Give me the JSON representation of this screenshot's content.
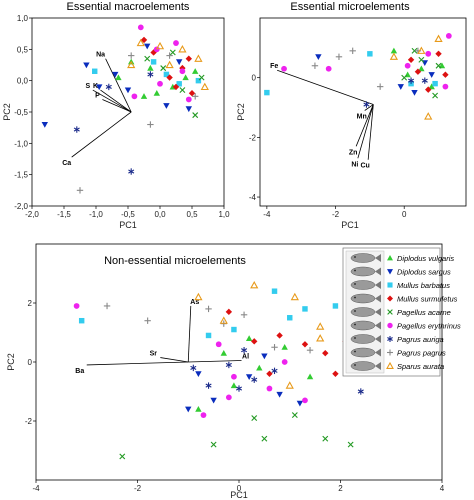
{
  "legend": {
    "title": "",
    "entries": [
      {
        "name": "Diplodus vulgaris",
        "color": "#33cc33",
        "marker": "triangle-up"
      },
      {
        "name": "Diplodus sargus",
        "color": "#0a2dbd",
        "marker": "triangle-down"
      },
      {
        "name": "Mullus barbatus",
        "color": "#33ccee",
        "marker": "square"
      },
      {
        "name": "Mullus surmuletus",
        "color": "#dd1111",
        "marker": "diamond"
      },
      {
        "name": "Pagellus acarne",
        "color": "#229922",
        "marker": "x"
      },
      {
        "name": "Pagellus erythrinus",
        "color": "#ee22ee",
        "marker": "circle"
      },
      {
        "name": "Pagrus auriga",
        "color": "#1a2a8a",
        "marker": "asterisk"
      },
      {
        "name": "Pagrus pagrus",
        "color": "#888888",
        "marker": "plus"
      },
      {
        "name": "Sparus aurata",
        "color": "#e89a1a",
        "marker": "triangle-open"
      }
    ]
  },
  "chart_data": [
    {
      "type": "scatter",
      "title": "Essential macroelements",
      "xlabel": "PC1",
      "ylabel": "PC2",
      "xlim": [
        -2.0,
        1.0
      ],
      "ylim": [
        -2.0,
        1.0
      ],
      "xticks": [
        "-2,0",
        "-1,5",
        "-1,0",
        "-0,5",
        "0,0",
        "0,5",
        "1,0"
      ],
      "xtick_values": [
        -2.0,
        -1.5,
        -1.0,
        -0.5,
        0.0,
        0.5,
        1.0
      ],
      "yticks": [
        "-2,0",
        "-1,5",
        "-1,0",
        "-0,5",
        "0,0",
        "0,5",
        "1,0"
      ],
      "ytick_values": [
        -2.0,
        -1.5,
        -1.0,
        -0.5,
        0.0,
        0.5,
        1.0
      ],
      "origin": [
        -0.45,
        -0.5
      ],
      "loadings": [
        {
          "label": "Na",
          "x": -0.85,
          "y": 0.35
        },
        {
          "label": "S",
          "x": -1.05,
          "y": -0.15
        },
        {
          "label": "K",
          "x": -0.93,
          "y": -0.15
        },
        {
          "label": "P",
          "x": -0.9,
          "y": -0.3
        },
        {
          "label": "Ca",
          "x": -1.38,
          "y": -1.22
        }
      ],
      "points": [
        {
          "s": 0,
          "x": -0.65,
          "y": 0.05
        },
        {
          "s": 0,
          "x": -0.45,
          "y": 0.3
        },
        {
          "s": 0,
          "x": -0.15,
          "y": 0.2
        },
        {
          "s": 0,
          "x": 0.2,
          "y": -0.1
        },
        {
          "s": 0,
          "x": -0.05,
          "y": -0.2
        },
        {
          "s": 0,
          "x": 0.4,
          "y": 0.05
        },
        {
          "s": 0,
          "x": -0.25,
          "y": -0.25
        },
        {
          "s": 0,
          "x": 0.55,
          "y": 0.15
        },
        {
          "s": 1,
          "x": -1.8,
          "y": -0.7
        },
        {
          "s": 1,
          "x": -0.95,
          "y": -0.1
        },
        {
          "s": 1,
          "x": -0.7,
          "y": 0.1
        },
        {
          "s": 1,
          "x": -0.2,
          "y": 0.55
        },
        {
          "s": 1,
          "x": 0.1,
          "y": -0.4
        },
        {
          "s": 1,
          "x": 0.45,
          "y": -0.45
        },
        {
          "s": 1,
          "x": 0.3,
          "y": 0.3
        },
        {
          "s": 1,
          "x": -0.5,
          "y": -0.15
        },
        {
          "s": 1,
          "x": -1.15,
          "y": 0.25
        },
        {
          "s": 2,
          "x": -1.02,
          "y": 0.15
        },
        {
          "s": 2,
          "x": 0.6,
          "y": 0.0
        },
        {
          "s": 2,
          "x": -0.1,
          "y": 0.3
        },
        {
          "s": 2,
          "x": 0.1,
          "y": 0.1
        },
        {
          "s": 2,
          "x": 0.3,
          "y": -0.05
        },
        {
          "s": 3,
          "x": -0.1,
          "y": 0.45
        },
        {
          "s": 3,
          "x": 0.15,
          "y": 0.05
        },
        {
          "s": 3,
          "x": 0.35,
          "y": 0.2
        },
        {
          "s": 3,
          "x": 0.25,
          "y": -0.1
        },
        {
          "s": 3,
          "x": 0.5,
          "y": -0.2
        },
        {
          "s": 3,
          "x": -0.25,
          "y": 0.65
        },
        {
          "s": 3,
          "x": 0.45,
          "y": 0.35
        },
        {
          "s": 4,
          "x": 0.05,
          "y": 0.2
        },
        {
          "s": 4,
          "x": 0.35,
          "y": -0.15
        },
        {
          "s": 4,
          "x": 0.65,
          "y": 0.05
        },
        {
          "s": 4,
          "x": 0.55,
          "y": -0.55
        },
        {
          "s": 4,
          "x": -0.2,
          "y": 0.35
        },
        {
          "s": 4,
          "x": 0.2,
          "y": 0.45
        },
        {
          "s": 5,
          "x": -0.3,
          "y": 0.85
        },
        {
          "s": 5,
          "x": -0.05,
          "y": 0.5
        },
        {
          "s": 5,
          "x": 0.25,
          "y": 0.6
        },
        {
          "s": 5,
          "x": -0.4,
          "y": -0.25
        },
        {
          "s": 5,
          "x": 0.35,
          "y": 0.15
        },
        {
          "s": 5,
          "x": 0.0,
          "y": -0.05
        },
        {
          "s": 5,
          "x": 0.45,
          "y": -0.3
        },
        {
          "s": 6,
          "x": -1.3,
          "y": -0.78
        },
        {
          "s": 6,
          "x": -0.45,
          "y": -1.45
        },
        {
          "s": 6,
          "x": -0.8,
          "y": -0.1
        },
        {
          "s": 6,
          "x": -0.15,
          "y": 0.1
        },
        {
          "s": 7,
          "x": -0.45,
          "y": 0.4
        },
        {
          "s": 7,
          "x": -0.15,
          "y": -0.7
        },
        {
          "s": 7,
          "x": -1.25,
          "y": -1.75
        },
        {
          "s": 7,
          "x": 0.55,
          "y": -0.25
        },
        {
          "s": 7,
          "x": 0.15,
          "y": 0.4
        },
        {
          "s": 8,
          "x": -0.3,
          "y": 0.6
        },
        {
          "s": 8,
          "x": 0.0,
          "y": 0.55
        },
        {
          "s": 8,
          "x": 0.35,
          "y": 0.5
        },
        {
          "s": 8,
          "x": 0.6,
          "y": 0.35
        },
        {
          "s": 8,
          "x": 0.15,
          "y": 0.25
        },
        {
          "s": 8,
          "x": -0.45,
          "y": 0.25
        },
        {
          "s": 8,
          "x": 0.7,
          "y": -0.1
        }
      ]
    },
    {
      "type": "scatter",
      "title": "Essential microelements",
      "xlabel": "PC1",
      "ylabel": "PC2",
      "xlim": [
        -4.2,
        1.8
      ],
      "ylim": [
        -4.3,
        2.0
      ],
      "xticks": [
        "-4",
        "-2",
        "0"
      ],
      "xtick_values": [
        -4,
        -2,
        0
      ],
      "yticks": [
        "-4",
        "-2",
        "0"
      ],
      "ytick_values": [
        -4,
        -2,
        0
      ],
      "origin": [
        -0.9,
        -0.9
      ],
      "loadings": [
        {
          "label": "Fe",
          "x": -3.7,
          "y": 0.25
        },
        {
          "label": "Mn",
          "x": -1.15,
          "y": -1.1
        },
        {
          "label": "Zn",
          "x": -1.4,
          "y": -2.3
        },
        {
          "label": "Ni",
          "x": -1.35,
          "y": -2.7
        },
        {
          "label": "Cu",
          "x": -1.05,
          "y": -2.75
        }
      ],
      "points": [
        {
          "s": 0,
          "x": -0.3,
          "y": 0.9
        },
        {
          "s": 0,
          "x": 0.5,
          "y": 0.3
        },
        {
          "s": 0,
          "x": 0.1,
          "y": 0.1
        },
        {
          "s": 0,
          "x": 0.8,
          "y": -0.3
        },
        {
          "s": 0,
          "x": 1.1,
          "y": 0.4
        },
        {
          "s": 1,
          "x": -2.5,
          "y": 0.7
        },
        {
          "s": 1,
          "x": 0.3,
          "y": -0.5
        },
        {
          "s": 1,
          "x": -0.1,
          "y": -0.3
        },
        {
          "s": 1,
          "x": 0.6,
          "y": 0.5
        },
        {
          "s": 1,
          "x": 0.8,
          "y": 0.1
        },
        {
          "s": 2,
          "x": -4.0,
          "y": -0.5
        },
        {
          "s": 2,
          "x": -1.0,
          "y": 0.8
        },
        {
          "s": 2,
          "x": 0.2,
          "y": -0.2
        },
        {
          "s": 2,
          "x": 0.9,
          "y": -0.2
        },
        {
          "s": 3,
          "x": 0.4,
          "y": 0.2
        },
        {
          "s": 3,
          "x": 0.7,
          "y": -0.4
        },
        {
          "s": 3,
          "x": 1.0,
          "y": 0.8
        },
        {
          "s": 3,
          "x": 0.2,
          "y": 0.6
        },
        {
          "s": 3,
          "x": 1.2,
          "y": 0.1
        },
        {
          "s": 4,
          "x": 0.0,
          "y": 0.0
        },
        {
          "s": 4,
          "x": 0.5,
          "y": 0.6
        },
        {
          "s": 4,
          "x": 0.9,
          "y": -0.6
        },
        {
          "s": 4,
          "x": 0.3,
          "y": 0.9
        },
        {
          "s": 4,
          "x": 1.0,
          "y": 0.4
        },
        {
          "s": 5,
          "x": -3.5,
          "y": 0.3
        },
        {
          "s": 5,
          "x": 1.3,
          "y": 1.4
        },
        {
          "s": 5,
          "x": -2.2,
          "y": 0.3
        },
        {
          "s": 5,
          "x": 0.1,
          "y": 0.4
        },
        {
          "s": 5,
          "x": 0.7,
          "y": 0.8
        },
        {
          "s": 5,
          "x": 1.2,
          "y": -0.3
        },
        {
          "s": 6,
          "x": -1.1,
          "y": -0.9
        },
        {
          "s": 6,
          "x": 0.2,
          "y": -0.1
        },
        {
          "s": 6,
          "x": 0.6,
          "y": -0.1
        },
        {
          "s": 7,
          "x": -1.5,
          "y": 0.9
        },
        {
          "s": 7,
          "x": -2.6,
          "y": 0.4
        },
        {
          "s": 7,
          "x": -1.9,
          "y": 0.7
        },
        {
          "s": 7,
          "x": -0.7,
          "y": -0.3
        },
        {
          "s": 7,
          "x": 0.4,
          "y": 0.9
        },
        {
          "s": 8,
          "x": 0.7,
          "y": -1.3
        },
        {
          "s": 8,
          "x": -0.3,
          "y": 0.7
        },
        {
          "s": 8,
          "x": 1.0,
          "y": 1.3
        },
        {
          "s": 8,
          "x": 0.5,
          "y": 0.9
        }
      ]
    },
    {
      "type": "scatter",
      "title": "Non-essential microelements",
      "xlabel": "PC1",
      "ylabel": "PC2",
      "xlim": [
        -4.0,
        4.0
      ],
      "ylim": [
        -4.0,
        4.0
      ],
      "xticks": [
        "-4",
        "-2",
        "0",
        "2",
        "4"
      ],
      "xtick_values": [
        -4,
        -2,
        0,
        2,
        4
      ],
      "yticks": [
        "-2",
        "0",
        "2"
      ],
      "ytick_values": [
        -2,
        0,
        2
      ],
      "origin": [
        -1.0,
        0.0
      ],
      "loadings": [
        {
          "label": "As",
          "x": -0.95,
          "y": 1.9
        },
        {
          "label": "Sr",
          "x": -1.55,
          "y": 0.15
        },
        {
          "label": "Ba",
          "x": -3.0,
          "y": -0.1
        },
        {
          "label": "Al",
          "x": 0.05,
          "y": 0.05
        }
      ],
      "points": [
        {
          "s": 0,
          "x": -0.3,
          "y": 0.3
        },
        {
          "s": 0,
          "x": 0.4,
          "y": -0.2
        },
        {
          "s": 0,
          "x": 0.9,
          "y": 0.5
        },
        {
          "s": 0,
          "x": -0.8,
          "y": -1.6
        },
        {
          "s": 0,
          "x": 1.4,
          "y": -0.5
        },
        {
          "s": 0,
          "x": -0.1,
          "y": -0.8
        },
        {
          "s": 0,
          "x": 0.2,
          "y": 0.8
        },
        {
          "s": 1,
          "x": 0.2,
          "y": -0.5
        },
        {
          "s": 1,
          "x": -0.5,
          "y": -1.3
        },
        {
          "s": 1,
          "x": 0.8,
          "y": -1.1
        },
        {
          "s": 1,
          "x": 1.2,
          "y": -1.4
        },
        {
          "s": 1,
          "x": -0.8,
          "y": -0.4
        },
        {
          "s": 1,
          "x": 0.5,
          "y": 0.2
        },
        {
          "s": 1,
          "x": -1.0,
          "y": -1.6
        },
        {
          "s": 2,
          "x": -3.1,
          "y": 1.4
        },
        {
          "s": 2,
          "x": 1.3,
          "y": 1.8
        },
        {
          "s": 2,
          "x": 1.0,
          "y": 1.5
        },
        {
          "s": 2,
          "x": -0.1,
          "y": 1.1
        },
        {
          "s": 2,
          "x": -0.6,
          "y": 0.9
        },
        {
          "s": 2,
          "x": 0.7,
          "y": 2.4
        },
        {
          "s": 2,
          "x": 1.9,
          "y": 1.9
        },
        {
          "s": 3,
          "x": 0.3,
          "y": 0.7
        },
        {
          "s": 3,
          "x": 0.8,
          "y": 0.9
        },
        {
          "s": 3,
          "x": 1.3,
          "y": 0.6
        },
        {
          "s": 3,
          "x": 1.7,
          "y": 0.3
        },
        {
          "s": 3,
          "x": 1.9,
          "y": -0.4
        },
        {
          "s": 3,
          "x": -0.2,
          "y": 1.7
        },
        {
          "s": 3,
          "x": 0.6,
          "y": -0.4
        },
        {
          "s": 3,
          "x": 2.1,
          "y": 0.7
        },
        {
          "s": 4,
          "x": -2.3,
          "y": -3.2
        },
        {
          "s": 4,
          "x": -0.5,
          "y": -2.8
        },
        {
          "s": 4,
          "x": 0.5,
          "y": -2.6
        },
        {
          "s": 4,
          "x": 1.7,
          "y": -2.6
        },
        {
          "s": 4,
          "x": 2.2,
          "y": -2.8
        },
        {
          "s": 4,
          "x": 0.3,
          "y": -1.9
        },
        {
          "s": 4,
          "x": 1.1,
          "y": -1.8
        },
        {
          "s": 5,
          "x": -3.2,
          "y": 1.9
        },
        {
          "s": 5,
          "x": -0.4,
          "y": 0.6
        },
        {
          "s": 5,
          "x": -0.7,
          "y": -1.8
        },
        {
          "s": 5,
          "x": -0.1,
          "y": -0.5
        },
        {
          "s": 5,
          "x": 0.6,
          "y": -0.9
        },
        {
          "s": 5,
          "x": 1.3,
          "y": -1.3
        },
        {
          "s": 5,
          "x": 2.3,
          "y": -0.2
        },
        {
          "s": 5,
          "x": 0.9,
          "y": 0.0
        },
        {
          "s": 5,
          "x": -0.2,
          "y": -1.2
        },
        {
          "s": 6,
          "x": 0.1,
          "y": 0.4
        },
        {
          "s": 6,
          "x": -0.2,
          "y": -0.1
        },
        {
          "s": 6,
          "x": 0.3,
          "y": -0.6
        },
        {
          "s": 6,
          "x": -0.6,
          "y": -0.8
        },
        {
          "s": 6,
          "x": 0.7,
          "y": -0.3
        },
        {
          "s": 6,
          "x": 2.4,
          "y": -1.0
        },
        {
          "s": 6,
          "x": 0.0,
          "y": -0.9
        },
        {
          "s": 6,
          "x": -0.9,
          "y": -0.2
        },
        {
          "s": 7,
          "x": -2.6,
          "y": 1.9
        },
        {
          "s": 7,
          "x": -1.8,
          "y": 1.4
        },
        {
          "s": 7,
          "x": -0.6,
          "y": 1.8
        },
        {
          "s": 7,
          "x": -0.3,
          "y": 1.3
        },
        {
          "s": 7,
          "x": 0.7,
          "y": 0.5
        },
        {
          "s": 7,
          "x": 1.4,
          "y": 0.4
        },
        {
          "s": 7,
          "x": 0.1,
          "y": 1.6
        },
        {
          "s": 8,
          "x": -0.8,
          "y": 2.2
        },
        {
          "s": 8,
          "x": 2.2,
          "y": 2.1
        },
        {
          "s": 8,
          "x": 1.1,
          "y": 2.2
        },
        {
          "s": 8,
          "x": 1.6,
          "y": 1.2
        },
        {
          "s": 8,
          "x": 1.6,
          "y": 0.8
        },
        {
          "s": 8,
          "x": -0.3,
          "y": 1.4
        },
        {
          "s": 8,
          "x": 1.0,
          "y": -0.8
        },
        {
          "s": 8,
          "x": 2.5,
          "y": 0.7
        },
        {
          "s": 8,
          "x": 0.3,
          "y": 2.6
        }
      ]
    }
  ]
}
